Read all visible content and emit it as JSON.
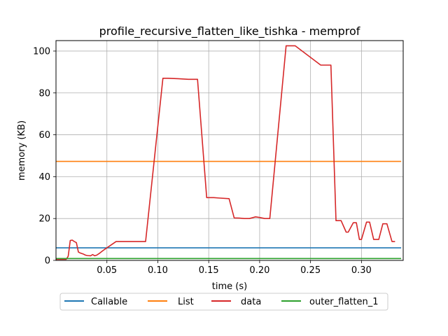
{
  "chart_data": {
    "type": "line",
    "title": "profile_recursive_flatten_like_tishka - memprof",
    "xlabel": "time (s)",
    "ylabel": "memory (KB)",
    "xlim": [
      0.0,
      0.341
    ],
    "ylim": [
      0,
      105
    ],
    "xticks": [
      0.05,
      0.1,
      0.15,
      0.2,
      0.25,
      0.3
    ],
    "xtick_labels": [
      "0.05",
      "0.10",
      "0.15",
      "0.20",
      "0.25",
      "0.30"
    ],
    "yticks": [
      0,
      20,
      40,
      60,
      80,
      100
    ],
    "ytick_labels": [
      "0",
      "20",
      "40",
      "60",
      "80",
      "100"
    ],
    "grid": true,
    "legend_position": "bottom-center, below axes",
    "series": [
      {
        "name": "Callable",
        "color": "#1f77b4",
        "points": [
          [
            0.0,
            6.0
          ],
          [
            0.339,
            6.0
          ]
        ]
      },
      {
        "name": "List",
        "color": "#ff7f0e",
        "points": [
          [
            0.0,
            47.3
          ],
          [
            0.339,
            47.3
          ]
        ]
      },
      {
        "name": "data",
        "color": "#d62728",
        "points": [
          [
            0.0,
            0.5
          ],
          [
            0.01,
            0.5
          ],
          [
            0.012,
            2.0
          ],
          [
            0.014,
            9.5
          ],
          [
            0.016,
            9.7
          ],
          [
            0.018,
            9.0
          ],
          [
            0.02,
            8.5
          ],
          [
            0.022,
            4.0
          ],
          [
            0.024,
            3.5
          ],
          [
            0.027,
            3.0
          ],
          [
            0.029,
            2.5
          ],
          [
            0.031,
            2.3
          ],
          [
            0.034,
            2.2
          ],
          [
            0.036,
            2.8
          ],
          [
            0.038,
            2.2
          ],
          [
            0.04,
            2.5
          ],
          [
            0.043,
            3.5
          ],
          [
            0.047,
            5.0
          ],
          [
            0.053,
            7.0
          ],
          [
            0.059,
            9.0
          ],
          [
            0.088,
            9.0
          ],
          [
            0.105,
            87.0
          ],
          [
            0.11,
            87.0
          ],
          [
            0.12,
            86.8
          ],
          [
            0.13,
            86.5
          ],
          [
            0.139,
            86.5
          ],
          [
            0.148,
            30.0
          ],
          [
            0.155,
            30.0
          ],
          [
            0.16,
            29.8
          ],
          [
            0.17,
            29.5
          ],
          [
            0.175,
            20.3
          ],
          [
            0.18,
            20.2
          ],
          [
            0.185,
            20.0
          ],
          [
            0.19,
            20.0
          ],
          [
            0.196,
            20.8
          ],
          [
            0.2,
            20.5
          ],
          [
            0.205,
            20.0
          ],
          [
            0.21,
            20.0
          ],
          [
            0.226,
            102.5
          ],
          [
            0.235,
            102.5
          ],
          [
            0.26,
            93.3
          ],
          [
            0.265,
            93.3
          ],
          [
            0.27,
            93.3
          ],
          [
            0.275,
            19.0
          ],
          [
            0.28,
            19.0
          ],
          [
            0.285,
            13.5
          ],
          [
            0.287,
            13.5
          ],
          [
            0.292,
            18.0
          ],
          [
            0.295,
            18.0
          ],
          [
            0.298,
            10.0
          ],
          [
            0.3,
            10.0
          ],
          [
            0.305,
            18.3
          ],
          [
            0.308,
            18.3
          ],
          [
            0.312,
            10.0
          ],
          [
            0.317,
            10.0
          ],
          [
            0.321,
            17.5
          ],
          [
            0.325,
            17.5
          ],
          [
            0.33,
            9.0
          ],
          [
            0.333,
            9.0
          ]
        ]
      },
      {
        "name": "outer_flatten_1",
        "color": "#2ca02c",
        "points": [
          [
            0.0,
            0.9
          ],
          [
            0.339,
            0.9
          ]
        ]
      }
    ]
  }
}
